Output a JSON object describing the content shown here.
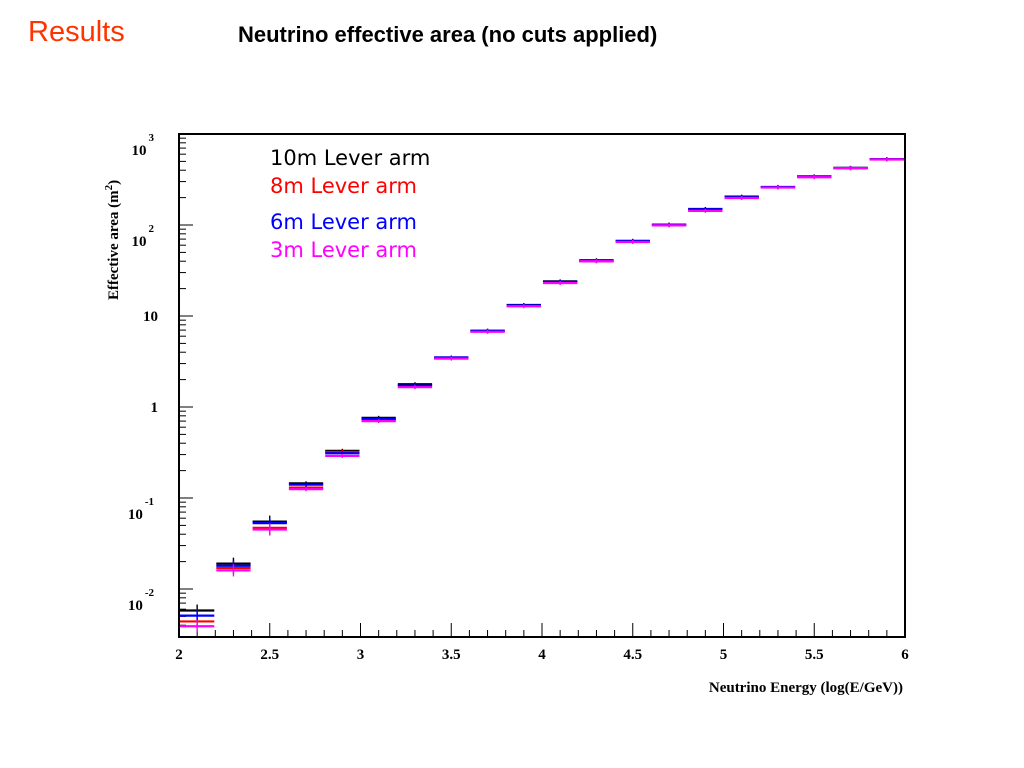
{
  "slide": {
    "heading": "Results",
    "title": "Neutrino effective area (no cuts applied)"
  },
  "chart_data": {
    "type": "scatter",
    "title": "",
    "xlabel": "Neutrino Energy (log(E/GeV))",
    "ylabel": "Effective area (m²)",
    "ylabel_text": "Effective area (m",
    "ylabel_sup": "2",
    "ylabel_close": ")",
    "xlim": [
      2,
      6
    ],
    "ylim": [
      0.003,
      1000
    ],
    "y_scale": "log",
    "grid": false,
    "legend_position": "top-left",
    "x_ticks": [
      "2",
      "2.5",
      "3",
      "3.5",
      "4",
      "4.5",
      "5",
      "5.5",
      "6"
    ],
    "y_ticks": [
      {
        "base": "10",
        "exp": "3"
      },
      {
        "base": "10",
        "exp": "2"
      },
      {
        "base": "10",
        "exp": ""
      },
      {
        "base": "1",
        "exp": ""
      },
      {
        "base": "10",
        "exp": "-1"
      },
      {
        "base": "10",
        "exp": "-2"
      }
    ],
    "bin_width": 0.2,
    "x": [
      2.1,
      2.3,
      2.5,
      2.7,
      2.9,
      3.1,
      3.3,
      3.5,
      3.7,
      3.9,
      4.1,
      4.3,
      4.5,
      4.7,
      4.9,
      5.1,
      5.3,
      5.5,
      5.7,
      5.9
    ],
    "series": [
      {
        "name": "10m Lever arm",
        "color": "#000000",
        "values": [
          0.0058,
          0.019,
          0.055,
          0.145,
          0.33,
          0.76,
          1.78,
          3.5,
          6.9,
          13.2,
          24,
          41,
          67,
          101,
          150,
          205,
          262,
          342,
          425,
          530
        ]
      },
      {
        "name": "8m Lever arm",
        "color": "#ff0000",
        "values": [
          0.0044,
          0.017,
          0.047,
          0.13,
          0.32,
          0.72,
          1.72,
          3.45,
          6.8,
          13.0,
          23.5,
          40,
          66,
          100,
          147,
          200,
          260,
          338,
          422,
          528
        ]
      },
      {
        "name": "6m Lever arm",
        "color": "#0000ff",
        "values": [
          0.0051,
          0.018,
          0.053,
          0.14,
          0.31,
          0.74,
          1.72,
          3.5,
          6.85,
          13.1,
          23.7,
          40.5,
          66.5,
          100.5,
          149,
          202,
          261,
          340,
          423,
          529
        ]
      },
      {
        "name": "3m Lever arm",
        "color": "#ff00ff",
        "values": [
          0.0039,
          0.016,
          0.045,
          0.125,
          0.29,
          0.7,
          1.65,
          3.4,
          6.7,
          12.8,
          23,
          40,
          65,
          99,
          143,
          198,
          258,
          335,
          420,
          525
        ]
      }
    ]
  }
}
